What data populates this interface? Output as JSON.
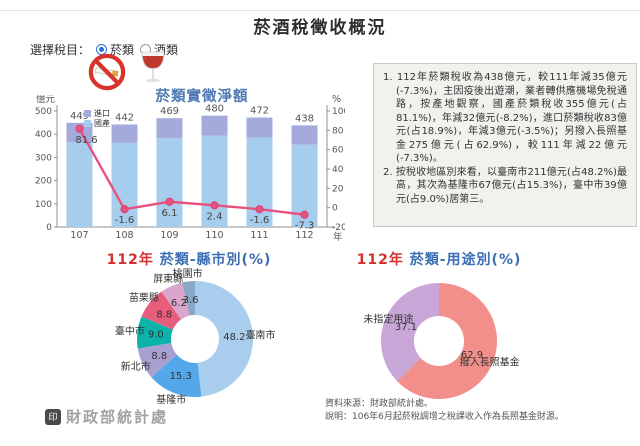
{
  "header": {
    "title": "菸酒稅徵收概況"
  },
  "selector": {
    "label": "選擇稅目：",
    "options": [
      {
        "label": "菸類",
        "selected": true
      },
      {
        "label": "酒類",
        "selected": false
      }
    ]
  },
  "icons": {
    "no_smoking": "no-smoking-icon",
    "wine_glass": "wine-glass-icon",
    "seal": "statistics-seal-icon"
  },
  "colors": {
    "accent_blue": "#3c6eb4",
    "accent_red": "#d3312e",
    "bar_domestic": "#a6cdec",
    "bar_import": "#a4abdc",
    "growth_line": "#e8517e",
    "notes_bg": "#f2f1ee"
  },
  "notes": [
    "1. 112年菸類稅收為438億元，較111年減35億元(-7.3%)，主因疫後出遊潮，業者轉供應機場免稅通路，按產地觀察，國產菸類稅收355億元(占81.1%)，年減32億元(-8.2%)，進口菸類稅收83億元(占18.9%)，年減3億元(-3.5%)；另撥入長照基金275億元(占62.9%)，較111年減22億元(-7.3%)。",
    "2. 按稅收地區別來看，以臺南市211億元(占48.2%)最高，其次為基隆市67億元(占15.3%)，臺中市39億元(占9.0%)居第三。"
  ],
  "footer": {
    "logo_text": "財政部統計處",
    "source": "資料來源：財政部統計處。",
    "note": "說明：106年6月起菸稅調增之稅課收入作為長照基金財源。"
  },
  "chart_data": [
    {
      "type": "bar",
      "title": "菸類實徵淨額",
      "categories": [
        "107",
        "108",
        "109",
        "110",
        "111",
        "112"
      ],
      "totals": [
        "449",
        "442",
        "469",
        "480",
        "472",
        "438"
      ],
      "series": [
        {
          "name": "國產",
          "role": "bar-stack-bottom",
          "color": "#a6cdec",
          "values": [
            365,
            363,
            383,
            394,
            386,
            355
          ]
        },
        {
          "name": "進口",
          "role": "bar-stack-top",
          "color": "#a4abdc",
          "values": [
            84,
            79,
            86,
            86,
            86,
            83
          ]
        },
        {
          "name": "",
          "role": "line-growth-rate",
          "color": "#e8517e",
          "axis": "right",
          "values": [
            81.6,
            -1.6,
            6.1,
            2.4,
            -1.6,
            -7.3
          ],
          "labels": [
            "81.6",
            "-1.6",
            "6.1",
            "2.4",
            "-1.6",
            "-7.3"
          ]
        }
      ],
      "legend": {
        "items": [
          {
            "label": "進口",
            "color": "#a4abdc"
          },
          {
            "label": "國產",
            "color": "#a6cdec"
          }
        ]
      },
      "y_left": {
        "label": "億元",
        "min": 0,
        "max": 500,
        "step": 100
      },
      "y_right": {
        "label": "%",
        "min": -20,
        "max": 100,
        "step": 20
      },
      "x_suffix": "年",
      "grid": false
    },
    {
      "type": "pie",
      "title_year": "112年",
      "title_rest": " 菸類-縣市別(%)",
      "slices": [
        {
          "name": "臺南市",
          "value": 48.2,
          "label": "48.2",
          "color": "#a9cdec"
        },
        {
          "name": "基隆市",
          "value": 15.3,
          "label": "15.3",
          "color": "#54a7e9"
        },
        {
          "name": "新北市",
          "value": 8.8,
          "label": "8.8",
          "color": "#a9a0d2"
        },
        {
          "name": "臺中市",
          "value": 9.0,
          "label": "9.0",
          "color": "#0cb3a8"
        },
        {
          "name": "苗栗縣",
          "value": 8.8,
          "label": "8.8",
          "color": "#e85d7c"
        },
        {
          "name": "屏東縣",
          "value": 6.2,
          "label": "6.2",
          "color": "#dba6cb"
        },
        {
          "name": "桃園市",
          "value": 3.6,
          "label": "3.6",
          "color": "#8aa7c4"
        }
      ],
      "donut": true,
      "value_r": 0.68,
      "label_r": 1.13
    },
    {
      "type": "pie",
      "title_year": "112年",
      "title_rest": " 菸類-用途別(%)",
      "slices": [
        {
          "name": "撥入長照基金",
          "value": 62.9,
          "label": "62.9",
          "color": "#f28f8b"
        },
        {
          "name": "未指定用途",
          "value": 37.1,
          "label": "37.1",
          "color": "#c9a6d8"
        }
      ],
      "donut": true,
      "value_r": 0.62,
      "label_r": 0.95
    }
  ]
}
